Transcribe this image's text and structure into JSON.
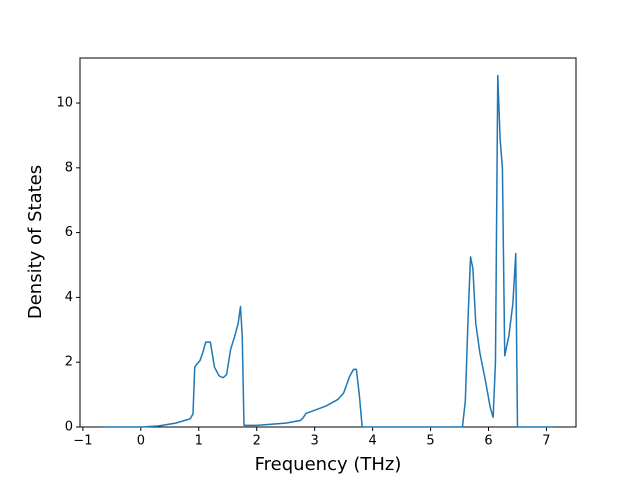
{
  "chart_data": {
    "type": "line",
    "x_label": "Frequency (THz)",
    "y_label": "Density of States",
    "x": [
      -0.66,
      0,
      0.3,
      0.6,
      0.85,
      0.9,
      0.93,
      0.97,
      1.02,
      1.07,
      1.12,
      1.2,
      1.27,
      1.35,
      1.42,
      1.48,
      1.55,
      1.62,
      1.68,
      1.72,
      1.75,
      1.78,
      2.0,
      2.5,
      2.75,
      2.8,
      2.85,
      3.2,
      3.4,
      3.5,
      3.6,
      3.67,
      3.72,
      3.77,
      3.82,
      4.5,
      5.55,
      5.6,
      5.65,
      5.69,
      5.73,
      5.78,
      5.85,
      5.95,
      6.03,
      6.08,
      6.12,
      6.16,
      6.2,
      6.24,
      6.28,
      6.35,
      6.42,
      6.47,
      6.5,
      7.12
    ],
    "values": [
      0,
      0,
      0.03,
      0.12,
      0.25,
      0.4,
      1.85,
      1.95,
      2.05,
      2.3,
      2.62,
      2.62,
      1.85,
      1.58,
      1.52,
      1.62,
      2.4,
      2.8,
      3.2,
      3.72,
      2.8,
      0.05,
      0.05,
      0.12,
      0.2,
      0.28,
      0.42,
      0.65,
      0.85,
      1.05,
      1.55,
      1.78,
      1.78,
      1.0,
      0,
      0,
      0,
      0.8,
      3.5,
      5.25,
      4.9,
      3.2,
      2.3,
      1.4,
      0.6,
      0.3,
      2.0,
      10.85,
      8.9,
      8.0,
      2.2,
      2.8,
      3.8,
      5.35,
      0,
      0
    ],
    "color": "#1f77b4",
    "xlim": [
      -1.05,
      7.51
    ],
    "ylim": [
      0,
      11.39
    ],
    "xticks": [
      {
        "value": -1,
        "label": "−1"
      },
      0,
      1,
      2,
      3,
      4,
      5,
      6,
      7
    ],
    "yticks": [
      0,
      2,
      4,
      6,
      8,
      10
    ]
  }
}
